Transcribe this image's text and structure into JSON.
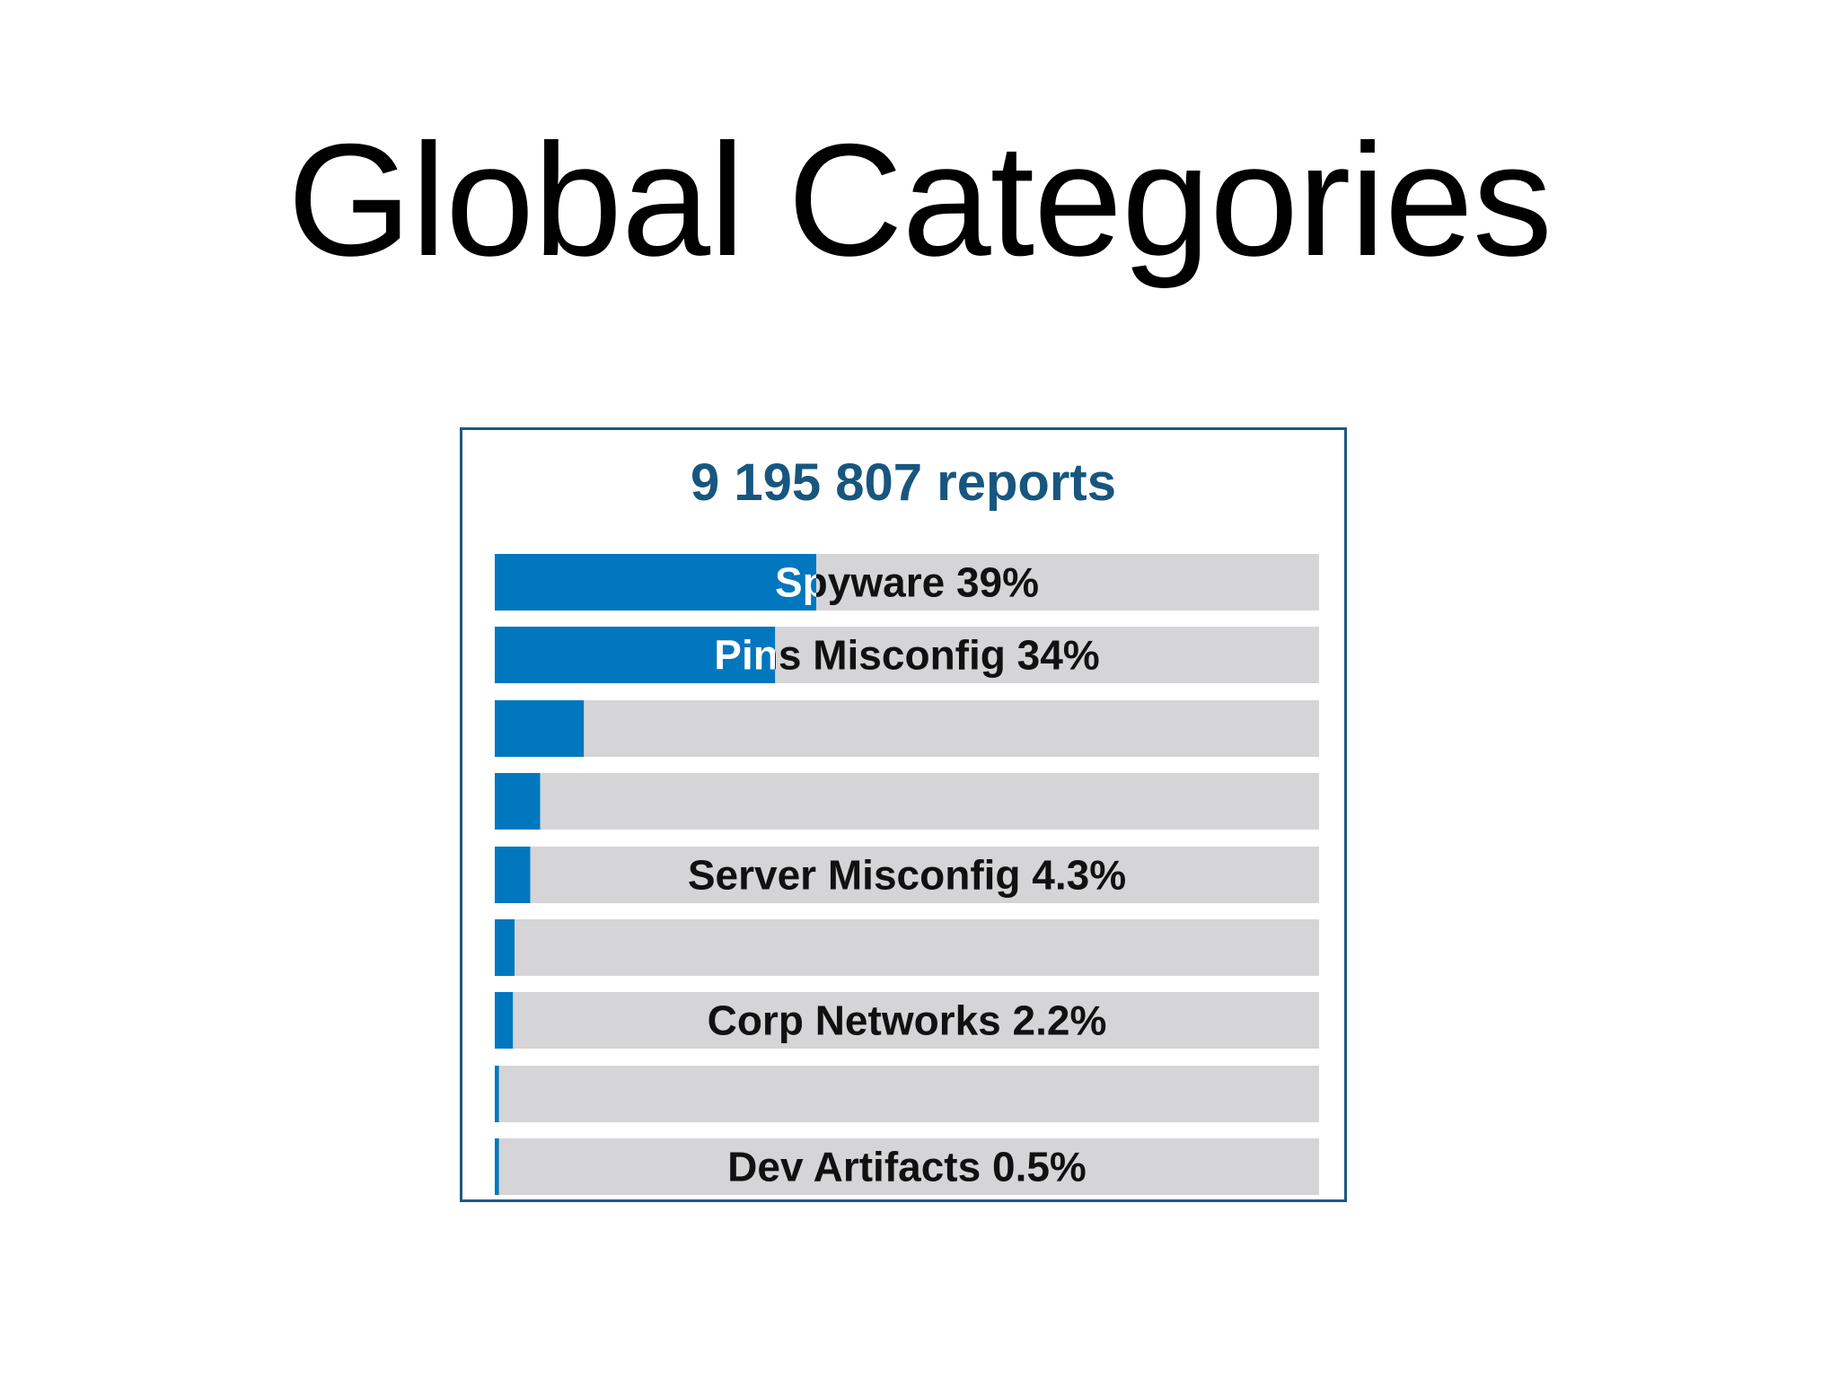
{
  "slide": {
    "title": "Global Categories"
  },
  "colors": {
    "bar_fill": "#0077be",
    "bar_track": "#d5d5d7",
    "heading": "#17567f",
    "border": "#1d5a80",
    "label": "#111111",
    "label_on_fill": "#ffffff"
  },
  "chart_data": {
    "type": "bar",
    "orientation": "horizontal",
    "title": "9 195 807 reports",
    "xlim": [
      0,
      100
    ],
    "grid": false,
    "legend": "none",
    "bars": [
      {
        "value": 39,
        "label": "Spyware 39%"
      },
      {
        "value": 34,
        "label": "Pins Misconfig 34%"
      },
      {
        "value": 10.8,
        "label": ""
      },
      {
        "value": 5.5,
        "label": ""
      },
      {
        "value": 4.3,
        "label": "Server Misconfig 4.3%"
      },
      {
        "value": 2.4,
        "label": ""
      },
      {
        "value": 2.2,
        "label": "Corp Networks 2.2%"
      },
      {
        "value": 0.5,
        "label": ""
      },
      {
        "value": 0.5,
        "label": "Dev Artifacts 0.5%"
      }
    ]
  }
}
